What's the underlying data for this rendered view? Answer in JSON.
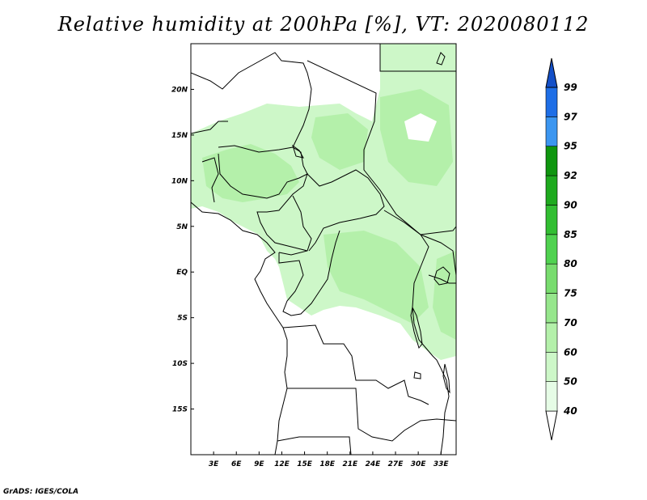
{
  "title": "Relative humidity at 200hPa [%], VT: 2020080112",
  "credit": "GrADS: IGES/COLA",
  "map": {
    "lon_range": [
      0,
      35
    ],
    "lat_range": [
      -20,
      25
    ],
    "lat_ticks": [
      "20N",
      "15N",
      "10N",
      "5N",
      "EQ",
      "5S",
      "10S",
      "15S"
    ],
    "lat_tick_values": [
      20,
      15,
      10,
      5,
      0,
      -5,
      -10,
      -15
    ],
    "lon_ticks": [
      "3E",
      "6E",
      "9E",
      "12E",
      "15E",
      "18E",
      "21E",
      "24E",
      "27E",
      "30E",
      "33E"
    ],
    "lon_tick_values": [
      3,
      6,
      9,
      12,
      15,
      18,
      21,
      24,
      27,
      30,
      33
    ]
  },
  "colorbar": {
    "levels": [
      "40",
      "50",
      "60",
      "70",
      "75",
      "80",
      "85",
      "90",
      "92",
      "95",
      "97",
      "99"
    ],
    "colors": [
      "#ffffff",
      "#e6fce6",
      "#cdf7c8",
      "#b4f0aa",
      "#96e68c",
      "#78dc6e",
      "#50d250",
      "#32be32",
      "#1eaa1e",
      "#0f960f",
      "#3c96f0",
      "#1e6ee6",
      "#1450c8"
    ]
  }
}
